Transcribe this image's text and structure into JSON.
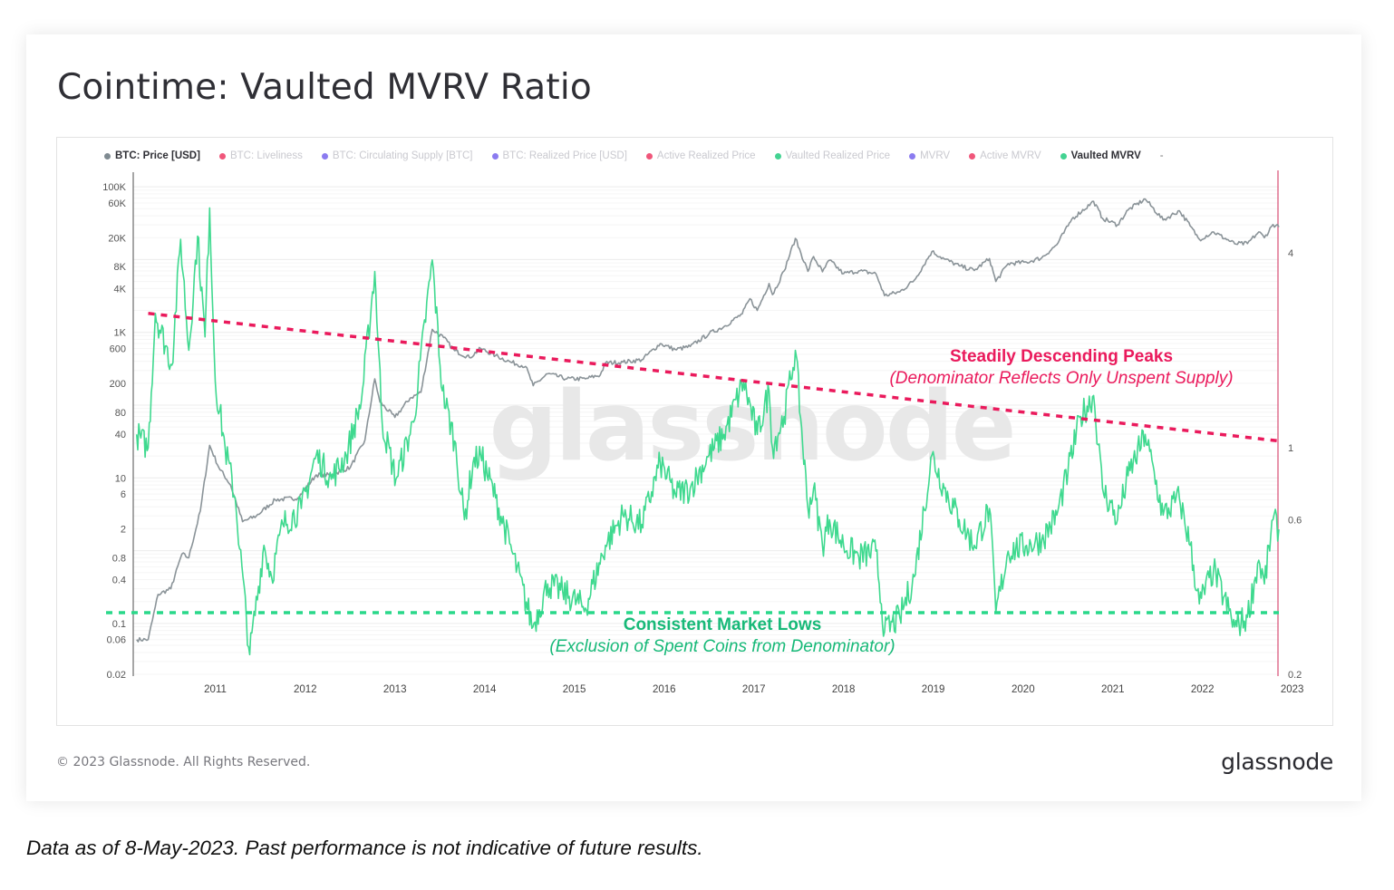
{
  "title": "Cointime: Vaulted MVRV Ratio",
  "legend": [
    {
      "label": "BTC: Price [USD]",
      "color": "#7f8a91",
      "active": true
    },
    {
      "label": "BTC: Liveliness",
      "color": "#f0567a",
      "active": false
    },
    {
      "label": "BTC: Circulating Supply [BTC]",
      "color": "#8b7bf0",
      "active": false
    },
    {
      "label": "BTC: Realized Price [USD]",
      "color": "#8b7bf0",
      "active": false
    },
    {
      "label": "Active Realized Price",
      "color": "#f0567a",
      "active": false
    },
    {
      "label": "Vaulted Realized Price",
      "color": "#43d392",
      "active": false
    },
    {
      "label": "MVRV",
      "color": "#8b7bf0",
      "active": false
    },
    {
      "label": "Active MVRV",
      "color": "#f0567a",
      "active": false
    },
    {
      "label": "Vaulted MVRV",
      "color": "#43d392",
      "active": true
    }
  ],
  "legend_extra": "-",
  "watermark": "glassnode",
  "annotations": {
    "peaks_title": "Steadily Descending Peaks",
    "peaks_subtitle": "(Denominator Reflects Only Unspent Supply)",
    "lows_title": "Consistent Market Lows",
    "lows_subtitle": "(Exclusion of Spent Coins from Denominator)"
  },
  "colors": {
    "price": "#8a9398",
    "vaulted_mvrv": "#3fd98f",
    "peaks": "#ea1a5c",
    "lows": "#17b978",
    "right_axis": "#e0718f"
  },
  "footer": {
    "copyright": "© 2023 Glassnode. All Rights Reserved.",
    "logo": "glassnode"
  },
  "note": "Data as of 8-May-2023. Past performance is not indicative of future results.",
  "chart_data": {
    "type": "line",
    "x_range": [
      "2010-08-01",
      "2023-05-08"
    ],
    "x_ticks": [
      "2011",
      "2012",
      "2013",
      "2014",
      "2015",
      "2016",
      "2017",
      "2018",
      "2019",
      "2020",
      "2021",
      "2022",
      "2023"
    ],
    "y_left": {
      "scale": "log",
      "range": [
        0.02,
        150000
      ],
      "ticks": [
        "100K",
        "60K",
        "20K",
        "8K",
        "4K",
        "1K",
        "600",
        "200",
        "80",
        "40",
        "10",
        "6",
        "2",
        "0.8",
        "0.4",
        "0.1",
        "0.06",
        "0.02"
      ],
      "tick_values": [
        100000,
        60000,
        20000,
        8000,
        4000,
        1000,
        600,
        200,
        80,
        40,
        10,
        6,
        2,
        0.8,
        0.4,
        0.1,
        0.06,
        0.02
      ]
    },
    "y_right": {
      "scale": "log",
      "range": [
        0.2,
        7
      ],
      "ticks": [
        "4",
        "1",
        "0.6",
        "0.2"
      ],
      "tick_values": [
        4,
        1,
        0.6,
        0.2
      ]
    },
    "series": [
      {
        "name": "BTC: Price [USD]",
        "axis": "left",
        "points": [
          [
            "2010-08-15",
            0.06
          ],
          [
            "2010-10-01",
            0.06
          ],
          [
            "2010-11-10",
            0.25
          ],
          [
            "2011-01-01",
            0.3
          ],
          [
            "2011-02-15",
            0.9
          ],
          [
            "2011-03-15",
            0.8
          ],
          [
            "2011-05-01",
            3.5
          ],
          [
            "2011-06-08",
            28
          ],
          [
            "2011-07-15",
            14
          ],
          [
            "2011-09-01",
            8
          ],
          [
            "2011-10-20",
            2.5
          ],
          [
            "2011-12-15",
            3
          ],
          [
            "2012-03-01",
            5
          ],
          [
            "2012-06-01",
            5.3
          ],
          [
            "2012-08-15",
            11
          ],
          [
            "2012-10-15",
            11
          ],
          [
            "2013-01-01",
            14
          ],
          [
            "2013-03-01",
            33
          ],
          [
            "2013-04-10",
            230
          ],
          [
            "2013-05-01",
            110
          ],
          [
            "2013-07-01",
            68
          ],
          [
            "2013-09-01",
            125
          ],
          [
            "2013-10-15",
            150
          ],
          [
            "2013-11-30",
            1100
          ],
          [
            "2014-01-15",
            850
          ],
          [
            "2014-03-01",
            560
          ],
          [
            "2014-05-01",
            450
          ],
          [
            "2014-06-15",
            600
          ],
          [
            "2014-08-15",
            480
          ],
          [
            "2014-10-15",
            390
          ],
          [
            "2014-12-15",
            340
          ],
          [
            "2015-01-15",
            185
          ],
          [
            "2015-03-15",
            270
          ],
          [
            "2015-06-01",
            230
          ],
          [
            "2015-08-15",
            230
          ],
          [
            "2015-10-15",
            260
          ],
          [
            "2015-11-05",
            380
          ],
          [
            "2016-01-15",
            390
          ],
          [
            "2016-04-01",
            420
          ],
          [
            "2016-06-15",
            700
          ],
          [
            "2016-08-15",
            580
          ],
          [
            "2016-10-15",
            640
          ],
          [
            "2016-12-31",
            960
          ],
          [
            "2017-03-01",
            1200
          ],
          [
            "2017-05-15",
            1800
          ],
          [
            "2017-06-15",
            2900
          ],
          [
            "2017-07-15",
            2000
          ],
          [
            "2017-09-01",
            4700
          ],
          [
            "2017-09-15",
            3300
          ],
          [
            "2017-11-01",
            7000
          ],
          [
            "2017-12-17",
            19500
          ],
          [
            "2018-02-06",
            6900
          ],
          [
            "2018-03-01",
            11000
          ],
          [
            "2018-04-06",
            6800
          ],
          [
            "2018-05-05",
            9800
          ],
          [
            "2018-07-01",
            6400
          ],
          [
            "2018-09-01",
            7000
          ],
          [
            "2018-11-10",
            6400
          ],
          [
            "2018-12-15",
            3200
          ],
          [
            "2019-02-15",
            3600
          ],
          [
            "2019-04-15",
            5200
          ],
          [
            "2019-06-26",
            12900
          ],
          [
            "2019-08-15",
            10200
          ],
          [
            "2019-10-15",
            8200
          ],
          [
            "2019-12-15",
            7100
          ],
          [
            "2020-02-15",
            10300
          ],
          [
            "2020-03-12",
            5000
          ],
          [
            "2020-05-01",
            8800
          ],
          [
            "2020-07-15",
            9200
          ],
          [
            "2020-09-15",
            10600
          ],
          [
            "2020-11-15",
            16000
          ],
          [
            "2020-12-31",
            29000
          ],
          [
            "2021-01-15",
            36000
          ],
          [
            "2021-04-14",
            63000
          ],
          [
            "2021-05-20",
            37000
          ],
          [
            "2021-07-20",
            30000
          ],
          [
            "2021-09-01",
            48000
          ],
          [
            "2021-11-10",
            68000
          ],
          [
            "2022-01-22",
            35000
          ],
          [
            "2022-03-29",
            47000
          ],
          [
            "2022-05-12",
            29000
          ],
          [
            "2022-06-18",
            19000
          ],
          [
            "2022-08-15",
            24000
          ],
          [
            "2022-11-09",
            16500
          ],
          [
            "2022-12-31",
            16600
          ],
          [
            "2023-02-15",
            24000
          ],
          [
            "2023-03-10",
            20000
          ],
          [
            "2023-04-14",
            30400
          ],
          [
            "2023-05-08",
            28000
          ]
        ]
      },
      {
        "name": "Vaulted MVRV",
        "axis": "right",
        "points": [
          [
            "2010-08-15",
            1.1
          ],
          [
            "2010-10-01",
            1.0
          ],
          [
            "2010-10-30",
            2.6
          ],
          [
            "2011-01-05",
            1.8
          ],
          [
            "2011-02-10",
            4.4
          ],
          [
            "2011-03-15",
            2.0
          ],
          [
            "2011-04-20",
            4.5
          ],
          [
            "2011-05-20",
            2.2
          ],
          [
            "2011-06-08",
            5.5
          ],
          [
            "2011-07-01",
            1.6
          ],
          [
            "2011-08-10",
            1.0
          ],
          [
            "2011-09-20",
            0.7
          ],
          [
            "2011-11-18",
            0.23
          ],
          [
            "2012-01-15",
            0.5
          ],
          [
            "2012-02-15",
            0.4
          ],
          [
            "2012-04-01",
            0.58
          ],
          [
            "2012-06-15",
            0.65
          ],
          [
            "2012-08-15",
            0.95
          ],
          [
            "2012-10-15",
            0.8
          ],
          [
            "2012-12-15",
            0.95
          ],
          [
            "2013-02-15",
            1.4
          ],
          [
            "2013-04-10",
            3.5
          ],
          [
            "2013-05-10",
            1.2
          ],
          [
            "2013-07-05",
            0.8
          ],
          [
            "2013-09-15",
            1.2
          ],
          [
            "2013-11-30",
            3.8
          ],
          [
            "2014-01-10",
            1.5
          ],
          [
            "2014-03-01",
            1.05
          ],
          [
            "2014-04-10",
            0.6
          ],
          [
            "2014-05-15",
            0.9
          ],
          [
            "2014-06-15",
            0.95
          ],
          [
            "2014-08-15",
            0.7
          ],
          [
            "2014-10-20",
            0.48
          ],
          [
            "2015-01-14",
            0.28
          ],
          [
            "2015-03-15",
            0.38
          ],
          [
            "2015-05-15",
            0.36
          ],
          [
            "2015-08-15",
            0.32
          ],
          [
            "2015-11-05",
            0.5
          ],
          [
            "2016-01-15",
            0.62
          ],
          [
            "2016-04-01",
            0.58
          ],
          [
            "2016-06-15",
            0.9
          ],
          [
            "2016-08-15",
            0.72
          ],
          [
            "2016-10-15",
            0.75
          ],
          [
            "2016-12-31",
            0.95
          ],
          [
            "2017-03-01",
            1.1
          ],
          [
            "2017-05-20",
            1.6
          ],
          [
            "2017-07-15",
            1.1
          ],
          [
            "2017-09-01",
            1.5
          ],
          [
            "2017-09-15",
            1.0
          ],
          [
            "2017-11-01",
            1.25
          ],
          [
            "2017-12-17",
            2.0
          ],
          [
            "2018-02-06",
            0.65
          ],
          [
            "2018-03-01",
            0.75
          ],
          [
            "2018-04-06",
            0.5
          ],
          [
            "2018-05-05",
            0.6
          ],
          [
            "2018-07-01",
            0.5
          ],
          [
            "2018-09-01",
            0.46
          ],
          [
            "2018-11-10",
            0.48
          ],
          [
            "2018-12-15",
            0.27
          ],
          [
            "2019-02-15",
            0.3
          ],
          [
            "2019-04-15",
            0.4
          ],
          [
            "2019-06-26",
            0.95
          ],
          [
            "2019-08-15",
            0.75
          ],
          [
            "2019-10-15",
            0.6
          ],
          [
            "2019-12-15",
            0.5
          ],
          [
            "2020-02-15",
            0.65
          ],
          [
            "2020-03-12",
            0.31
          ],
          [
            "2020-05-01",
            0.48
          ],
          [
            "2020-07-15",
            0.5
          ],
          [
            "2020-09-15",
            0.52
          ],
          [
            "2020-11-15",
            0.62
          ],
          [
            "2020-12-31",
            0.85
          ],
          [
            "2021-02-20",
            1.25
          ],
          [
            "2021-04-14",
            1.45
          ],
          [
            "2021-05-20",
            0.75
          ],
          [
            "2021-07-20",
            0.6
          ],
          [
            "2021-09-01",
            0.82
          ],
          [
            "2021-11-10",
            1.1
          ],
          [
            "2022-01-22",
            0.62
          ],
          [
            "2022-03-29",
            0.7
          ],
          [
            "2022-05-12",
            0.5
          ],
          [
            "2022-06-18",
            0.33
          ],
          [
            "2022-08-15",
            0.42
          ],
          [
            "2022-11-09",
            0.28
          ],
          [
            "2022-12-31",
            0.3
          ],
          [
            "2023-02-15",
            0.45
          ],
          [
            "2023-03-10",
            0.38
          ],
          [
            "2023-04-14",
            0.6
          ],
          [
            "2023-05-08",
            0.56
          ]
        ]
      }
    ],
    "trendlines": [
      {
        "label": "Steadily Descending Peaks",
        "axis": "right",
        "from": [
          "2010-10-01",
          2.6
        ],
        "to": [
          "2023-05-08",
          1.05
        ]
      },
      {
        "label": "Consistent Market Lows",
        "axis": "right",
        "from": [
          "2010-08-01",
          0.31
        ],
        "to": [
          "2023-05-08",
          0.31
        ]
      }
    ]
  }
}
